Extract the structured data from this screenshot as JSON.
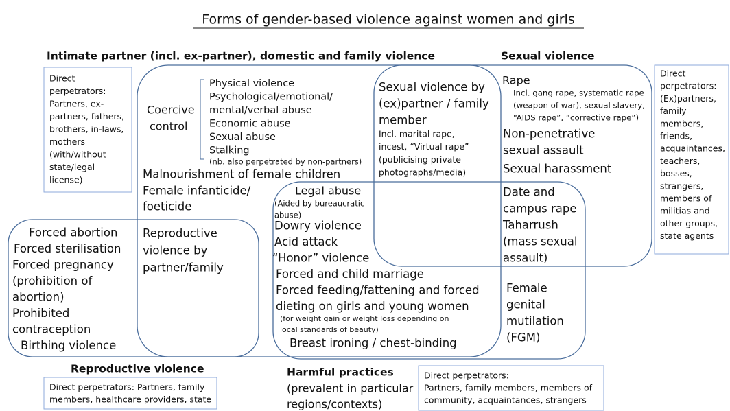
{
  "title": "Forms of gender-based violence against women and girls",
  "headings": {
    "ipv": "Intimate partner (incl. ex-partner), domestic and family violence",
    "sexual": "Sexual violence",
    "reproductive": "Reproductive violence",
    "harmful": "Harmful practices",
    "harmful_note": [
      "(prevalent in particular",
      "regions/contexts)"
    ]
  },
  "perpetrators": {
    "ipv": [
      "Direct",
      "perpetrators:",
      "Partners, ex-",
      "partners, fathers,",
      "brothers, in-laws,",
      "mothers",
      "(with/without",
      "state/legal",
      "license)"
    ],
    "sexual": [
      "Direct",
      "perpetrators:",
      "(Ex)partners,",
      "family",
      "members,",
      "friends,",
      "acquaintances,",
      "teachers,",
      "bosses,",
      "strangers,",
      "members of",
      "militias and",
      "other groups,",
      "state agents"
    ],
    "reproductive": [
      "Direct perpetrators: Partners, family",
      "members, healthcare providers, state"
    ],
    "harmful": [
      "Direct perpetrators:",
      "Partners, family members, members of",
      "community, acquaintances, strangers"
    ]
  },
  "ipv": {
    "coercive_control": [
      "Coercive",
      "control"
    ],
    "forms": [
      "Physical violence",
      "Psychological/emotional/",
      "mental/verbal abuse",
      "Economic abuse",
      "Sexual abuse",
      "Stalking"
    ],
    "note": "(nb. also perpetrated by non-partners)",
    "malnourishment": "Malnourishment of female children",
    "infanticide": [
      "Female infanticide/",
      "foeticide"
    ],
    "reproductive_by_partner": [
      "Reproductive",
      "violence by",
      "partner/family"
    ]
  },
  "reproductive": [
    "Forced abortion",
    "Forced sterilisation",
    "Forced pregnancy",
    "(prohibition of",
    "abortion)",
    "Prohibited",
    "contraception",
    "Birthing violence"
  ],
  "sexual_by_partner": {
    "heading": [
      "Sexual violence by",
      "(ex)partner / family",
      "member"
    ],
    "detail": [
      "Incl. marital rape,",
      "incest, “Virtual rape”",
      "(publicising private",
      "photographs/media)"
    ]
  },
  "sexual": {
    "rape": "Rape",
    "rape_detail": [
      "Incl. gang rape, systematic rape",
      "(weapon of war), sexual slavery,",
      "“AIDS rape”, “corrective rape”)"
    ],
    "non_penetrative": [
      "Non-penetrative",
      "sexual assault"
    ],
    "harassment": "Sexual harassment",
    "date_rape": [
      "Date and",
      "campus rape",
      "Taharrush",
      "(mass sexual",
      "assault)"
    ]
  },
  "harmful": {
    "legal_abuse": "Legal abuse",
    "legal_abuse_detail": [
      "(Aided by bureaucratic",
      "abuse)"
    ],
    "items": [
      "Dowry violence",
      "Acid attack",
      "“Honor” violence",
      "Forced and child marriage",
      "Forced feeding/fattening and forced",
      "dieting on girls and young women"
    ],
    "feeding_detail": [
      "(for weight gain or weight loss depending on",
      "local standards of beauty)"
    ],
    "breast_ironing": "Breast ironing / chest-binding",
    "fgm": [
      "Female",
      "genital",
      "mutilation",
      "(FGM)"
    ]
  }
}
